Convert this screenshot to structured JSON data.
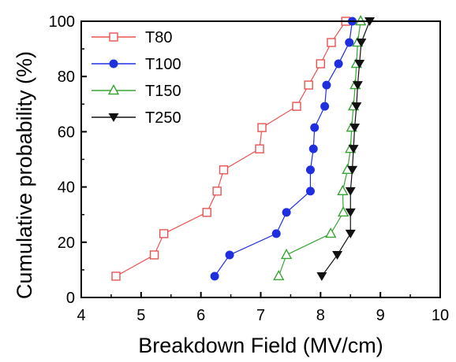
{
  "chart_data": {
    "type": "line",
    "xlabel": "Breakdown Field (MV/cm)",
    "ylabel": "Cumulative probability (%)",
    "xlim": [
      4,
      10
    ],
    "ylim": [
      0,
      100
    ],
    "xticks": [
      4,
      5,
      6,
      7,
      8,
      9,
      10
    ],
    "yticks": [
      0,
      20,
      40,
      60,
      80,
      100
    ],
    "grid": false,
    "legend_position": "top-left",
    "series": [
      {
        "name": "T80",
        "marker": "open-square",
        "color": "#e8534f",
        "points": [
          {
            "x": 4.58,
            "y": 7.7
          },
          {
            "x": 5.22,
            "y": 15.4
          },
          {
            "x": 5.38,
            "y": 23.1
          },
          {
            "x": 6.1,
            "y": 30.8
          },
          {
            "x": 6.27,
            "y": 38.5
          },
          {
            "x": 6.38,
            "y": 46.2
          },
          {
            "x": 6.98,
            "y": 53.8
          },
          {
            "x": 7.02,
            "y": 61.5
          },
          {
            "x": 7.6,
            "y": 69.2
          },
          {
            "x": 7.8,
            "y": 76.9
          },
          {
            "x": 8.0,
            "y": 84.6
          },
          {
            "x": 8.18,
            "y": 92.3
          },
          {
            "x": 8.42,
            "y": 100
          }
        ]
      },
      {
        "name": "T100",
        "marker": "filled-circle",
        "color": "#1f2fe0",
        "points": [
          {
            "x": 6.23,
            "y": 7.7
          },
          {
            "x": 6.48,
            "y": 15.4
          },
          {
            "x": 7.26,
            "y": 23.1
          },
          {
            "x": 7.43,
            "y": 30.8
          },
          {
            "x": 7.83,
            "y": 38.5
          },
          {
            "x": 7.83,
            "y": 46.2
          },
          {
            "x": 7.88,
            "y": 53.8
          },
          {
            "x": 7.9,
            "y": 61.5
          },
          {
            "x": 8.07,
            "y": 69.2
          },
          {
            "x": 8.1,
            "y": 76.9
          },
          {
            "x": 8.3,
            "y": 84.6
          },
          {
            "x": 8.48,
            "y": 92.3
          },
          {
            "x": 8.53,
            "y": 100
          }
        ]
      },
      {
        "name": "T150",
        "marker": "open-triangle-up",
        "color": "#3aa335",
        "points": [
          {
            "x": 7.3,
            "y": 7.7
          },
          {
            "x": 7.43,
            "y": 15.4
          },
          {
            "x": 8.17,
            "y": 23.1
          },
          {
            "x": 8.38,
            "y": 30.8
          },
          {
            "x": 8.37,
            "y": 38.5
          },
          {
            "x": 8.45,
            "y": 46.2
          },
          {
            "x": 8.5,
            "y": 53.8
          },
          {
            "x": 8.52,
            "y": 61.5
          },
          {
            "x": 8.55,
            "y": 69.2
          },
          {
            "x": 8.58,
            "y": 76.9
          },
          {
            "x": 8.6,
            "y": 84.6
          },
          {
            "x": 8.62,
            "y": 92.3
          },
          {
            "x": 8.67,
            "y": 100
          }
        ]
      },
      {
        "name": "T250",
        "marker": "filled-triangle-down",
        "color": "#111111",
        "points": [
          {
            "x": 8.02,
            "y": 7.7
          },
          {
            "x": 8.28,
            "y": 15.4
          },
          {
            "x": 8.5,
            "y": 23.1
          },
          {
            "x": 8.5,
            "y": 30.8
          },
          {
            "x": 8.5,
            "y": 38.5
          },
          {
            "x": 8.53,
            "y": 46.2
          },
          {
            "x": 8.55,
            "y": 53.8
          },
          {
            "x": 8.57,
            "y": 61.5
          },
          {
            "x": 8.6,
            "y": 69.2
          },
          {
            "x": 8.62,
            "y": 76.9
          },
          {
            "x": 8.65,
            "y": 84.6
          },
          {
            "x": 8.68,
            "y": 92.3
          },
          {
            "x": 8.82,
            "y": 100
          }
        ]
      }
    ]
  }
}
